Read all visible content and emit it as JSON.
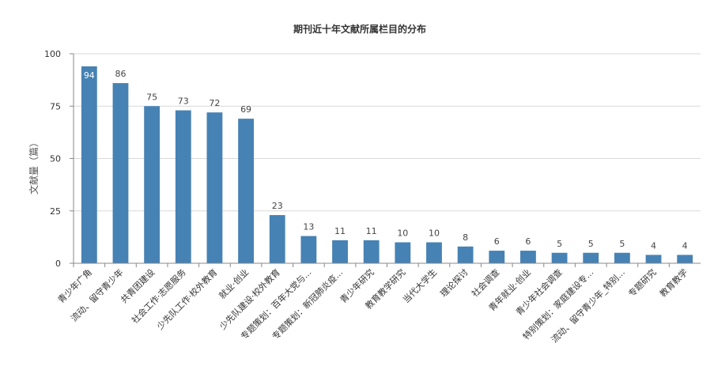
{
  "chart_data": {
    "type": "bar",
    "title": "期刊近十年文献所属栏目的分布",
    "ylabel": "文献量（篇）",
    "xlabel": "",
    "ylim": [
      0,
      100
    ],
    "yticks": [
      0,
      25,
      50,
      75,
      100
    ],
    "categories": [
      "青少年广角",
      "流动、留守青少年",
      "共青团建设",
      "社会工作·志愿服务",
      "少先队工作·校外教育",
      "就业·创业",
      "少先队建设·校外教育",
      "专题策划：百年大党与...",
      "专题策划：新冠肺炎疫...",
      "青少年研究",
      "教育教学研究",
      "当代大学生",
      "理论探讨",
      "社会调查",
      "青年就业·创业",
      "青少年社会调查",
      "特别策划：家庭建设专...",
      "流动、留守青少年_特别...",
      "专题研究",
      "教育教学"
    ],
    "values": [
      94,
      86,
      75,
      73,
      72,
      69,
      23,
      13,
      11,
      11,
      10,
      10,
      8,
      6,
      6,
      5,
      5,
      5,
      4,
      4
    ],
    "bar_color": "#4682b4",
    "grid": true
  }
}
